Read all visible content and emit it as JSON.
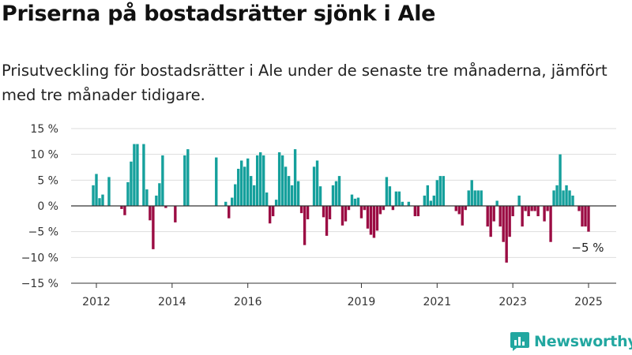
{
  "title": "Priserna på bostadsrätter sjönk i Ale",
  "subtitle": "Prisutveckling för bostadsrätter i Ale under de senaste tre månaderna, jämfört med tre månader tidigare.",
  "annotation": "−5 %",
  "brand": {
    "name": "Newsworthy",
    "icon": "bar-chart-logo-icon",
    "color": "#22a7a0"
  },
  "colors": {
    "positive": "#15a09c",
    "negative": "#9b0c43",
    "grid": "#dddddd",
    "zero_line": "#333333"
  },
  "chart_data": {
    "type": "bar",
    "title": "Priserna på bostadsrätter sjönk i Ale",
    "subtitle": "Prisutveckling för bostadsrätter i Ale under de senaste tre månaderna, jämfört med tre månader tidigare.",
    "xlabel": "",
    "ylabel": "",
    "ylim": [
      -15,
      15
    ],
    "yticks": [
      -15,
      -10,
      -5,
      0,
      5,
      10,
      15
    ],
    "ytick_labels": [
      "−15 %",
      "−10 %",
      "−5 %",
      "0 %",
      "5 %",
      "10 %",
      "15 %"
    ],
    "xticks": [
      2012,
      2014,
      2016,
      2019,
      2021,
      2023,
      2025
    ],
    "xtick_labels": [
      "2012",
      "2014",
      "2016",
      "2019",
      "2021",
      "2023",
      "2025"
    ],
    "x_unit": "month (YYYY-MM)",
    "values_unit": "%",
    "grid": true,
    "data": [
      {
        "x": "2011-12",
        "y": 4.0
      },
      {
        "x": "2012-01",
        "y": 6.2
      },
      {
        "x": "2012-02",
        "y": 1.5
      },
      {
        "x": "2012-03",
        "y": 2.2
      },
      {
        "x": "2012-05",
        "y": 5.6
      },
      {
        "x": "2012-09",
        "y": -0.6
      },
      {
        "x": "2012-10",
        "y": -1.8
      },
      {
        "x": "2012-11",
        "y": 4.6
      },
      {
        "x": "2012-12",
        "y": 8.6
      },
      {
        "x": "2013-01",
        "y": 12.0
      },
      {
        "x": "2013-02",
        "y": 12.0
      },
      {
        "x": "2013-04",
        "y": 12.0
      },
      {
        "x": "2013-05",
        "y": 3.2
      },
      {
        "x": "2013-06",
        "y": -2.8
      },
      {
        "x": "2013-07",
        "y": -8.4
      },
      {
        "x": "2013-08",
        "y": 2.0
      },
      {
        "x": "2013-09",
        "y": 4.4
      },
      {
        "x": "2013-10",
        "y": 9.8
      },
      {
        "x": "2013-11",
        "y": -0.4
      },
      {
        "x": "2014-02",
        "y": -3.2
      },
      {
        "x": "2014-05",
        "y": 9.8
      },
      {
        "x": "2014-06",
        "y": 11.0
      },
      {
        "x": "2015-03",
        "y": 9.4
      },
      {
        "x": "2015-06",
        "y": 0.8
      },
      {
        "x": "2015-07",
        "y": -2.4
      },
      {
        "x": "2015-08",
        "y": 1.6
      },
      {
        "x": "2015-09",
        "y": 4.2
      },
      {
        "x": "2015-10",
        "y": 7.2
      },
      {
        "x": "2015-11",
        "y": 8.8
      },
      {
        "x": "2015-12",
        "y": 7.6
      },
      {
        "x": "2016-01",
        "y": 9.2
      },
      {
        "x": "2016-02",
        "y": 5.8
      },
      {
        "x": "2016-03",
        "y": 4.0
      },
      {
        "x": "2016-04",
        "y": 9.8
      },
      {
        "x": "2016-05",
        "y": 10.4
      },
      {
        "x": "2016-06",
        "y": 9.8
      },
      {
        "x": "2016-07",
        "y": 2.6
      },
      {
        "x": "2016-08",
        "y": -3.4
      },
      {
        "x": "2016-09",
        "y": -2.0
      },
      {
        "x": "2016-10",
        "y": 1.2
      },
      {
        "x": "2016-11",
        "y": 10.4
      },
      {
        "x": "2016-12",
        "y": 9.8
      },
      {
        "x": "2017-01",
        "y": 7.6
      },
      {
        "x": "2017-02",
        "y": 5.8
      },
      {
        "x": "2017-03",
        "y": 4.0
      },
      {
        "x": "2017-04",
        "y": 11.0
      },
      {
        "x": "2017-05",
        "y": 4.8
      },
      {
        "x": "2017-06",
        "y": -1.4
      },
      {
        "x": "2017-07",
        "y": -7.6
      },
      {
        "x": "2017-08",
        "y": -2.6
      },
      {
        "x": "2017-10",
        "y": 7.6
      },
      {
        "x": "2017-11",
        "y": 8.8
      },
      {
        "x": "2017-12",
        "y": 3.8
      },
      {
        "x": "2018-01",
        "y": -2.2
      },
      {
        "x": "2018-02",
        "y": -5.8
      },
      {
        "x": "2018-03",
        "y": -2.6
      },
      {
        "x": "2018-04",
        "y": 4.0
      },
      {
        "x": "2018-05",
        "y": 4.8
      },
      {
        "x": "2018-06",
        "y": 5.8
      },
      {
        "x": "2018-07",
        "y": -3.8
      },
      {
        "x": "2018-08",
        "y": -3.0
      },
      {
        "x": "2018-09",
        "y": -0.8
      },
      {
        "x": "2018-10",
        "y": 2.2
      },
      {
        "x": "2018-11",
        "y": 1.4
      },
      {
        "x": "2018-12",
        "y": 1.6
      },
      {
        "x": "2019-01",
        "y": -2.4
      },
      {
        "x": "2019-02",
        "y": -0.8
      },
      {
        "x": "2019-03",
        "y": -4.4
      },
      {
        "x": "2019-04",
        "y": -5.6
      },
      {
        "x": "2019-05",
        "y": -6.2
      },
      {
        "x": "2019-06",
        "y": -4.8
      },
      {
        "x": "2019-07",
        "y": -1.6
      },
      {
        "x": "2019-08",
        "y": -0.8
      },
      {
        "x": "2019-09",
        "y": 5.6
      },
      {
        "x": "2019-10",
        "y": 3.8
      },
      {
        "x": "2019-11",
        "y": -0.8
      },
      {
        "x": "2019-12",
        "y": 2.8
      },
      {
        "x": "2020-01",
        "y": 2.8
      },
      {
        "x": "2020-02",
        "y": 0.8
      },
      {
        "x": "2020-04",
        "y": 0.8
      },
      {
        "x": "2020-06",
        "y": -2.0
      },
      {
        "x": "2020-07",
        "y": -2.0
      },
      {
        "x": "2020-09",
        "y": 2.0
      },
      {
        "x": "2020-10",
        "y": 4.0
      },
      {
        "x": "2020-11",
        "y": 1.0
      },
      {
        "x": "2020-12",
        "y": 2.0
      },
      {
        "x": "2021-01",
        "y": 5.0
      },
      {
        "x": "2021-02",
        "y": 5.8
      },
      {
        "x": "2021-03",
        "y": 5.8
      },
      {
        "x": "2021-07",
        "y": -1.0
      },
      {
        "x": "2021-08",
        "y": -1.6
      },
      {
        "x": "2021-09",
        "y": -3.8
      },
      {
        "x": "2021-10",
        "y": -0.8
      },
      {
        "x": "2021-11",
        "y": 3.0
      },
      {
        "x": "2021-12",
        "y": 5.0
      },
      {
        "x": "2022-01",
        "y": 3.0
      },
      {
        "x": "2022-02",
        "y": 3.0
      },
      {
        "x": "2022-03",
        "y": 3.0
      },
      {
        "x": "2022-05",
        "y": -4.0
      },
      {
        "x": "2022-06",
        "y": -6.0
      },
      {
        "x": "2022-07",
        "y": -3.0
      },
      {
        "x": "2022-08",
        "y": 1.0
      },
      {
        "x": "2022-09",
        "y": -4.0
      },
      {
        "x": "2022-10",
        "y": -7.0
      },
      {
        "x": "2022-11",
        "y": -11.0
      },
      {
        "x": "2022-12",
        "y": -6.0
      },
      {
        "x": "2023-01",
        "y": -2.0
      },
      {
        "x": "2023-03",
        "y": 2.0
      },
      {
        "x": "2023-04",
        "y": -4.0
      },
      {
        "x": "2023-05",
        "y": -1.0
      },
      {
        "x": "2023-06",
        "y": -2.0
      },
      {
        "x": "2023-07",
        "y": -1.0
      },
      {
        "x": "2023-08",
        "y": -1.0
      },
      {
        "x": "2023-09",
        "y": -2.0
      },
      {
        "x": "2023-11",
        "y": -3.0
      },
      {
        "x": "2023-12",
        "y": -1.0
      },
      {
        "x": "2024-01",
        "y": -7.0
      },
      {
        "x": "2024-02",
        "y": 3.0
      },
      {
        "x": "2024-03",
        "y": 4.0
      },
      {
        "x": "2024-04",
        "y": 10.0
      },
      {
        "x": "2024-05",
        "y": 3.0
      },
      {
        "x": "2024-06",
        "y": 4.0
      },
      {
        "x": "2024-07",
        "y": 3.0
      },
      {
        "x": "2024-08",
        "y": 2.0
      },
      {
        "x": "2024-10",
        "y": -1.0
      },
      {
        "x": "2024-11",
        "y": -4.0
      },
      {
        "x": "2024-12",
        "y": -4.0
      },
      {
        "x": "2025-01",
        "y": -5.0
      }
    ]
  }
}
